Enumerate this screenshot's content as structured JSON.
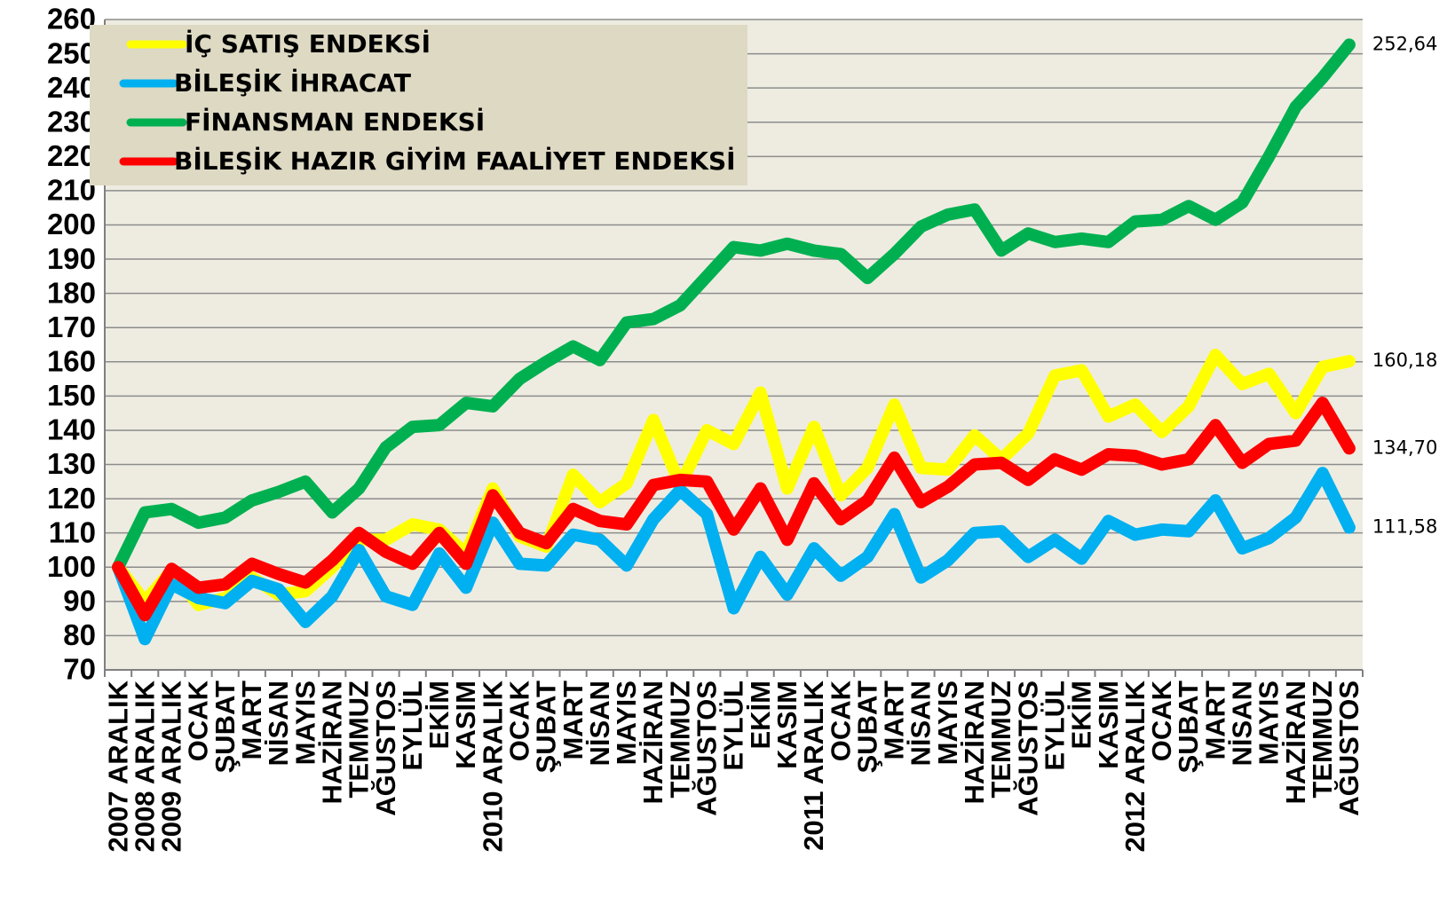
{
  "chart_data": {
    "type": "line",
    "categories": [
      "2007 ARALIK",
      "2008 ARALIK",
      "2009 ARALIK",
      "OCAK",
      "ŞUBAT",
      "MART",
      "NİSAN",
      "MAYIS",
      "HAZİRAN",
      "TEMMUZ",
      "AĞUSTOS",
      "EYLÜL",
      "EKİM",
      "KASIM",
      "2010 ARALIK",
      "OCAK",
      "ŞUBAT",
      "MART",
      "NİSAN",
      "MAYIS",
      "HAZİRAN",
      "TEMMUZ",
      "AĞUSTOS",
      "EYLÜL",
      "EKİM",
      "KASIM",
      "2011 ARALIK",
      "OCAK",
      "ŞUBAT",
      "MART",
      "NİSAN",
      "MAYIS",
      "HAZİRAN",
      "TEMMUZ",
      "AĞUSTOS",
      "EYLÜL",
      "EKİM",
      "KASIM",
      "2012 ARALIK",
      "OCAK",
      "ŞUBAT",
      "MART",
      "NİSAN",
      "MAYIS",
      "HAZİRAN",
      "TEMMUZ",
      "AĞUSTOS"
    ],
    "series": [
      {
        "name": "İÇ SATIŞ ENDEKSİ",
        "color": "#ffff00",
        "values": [
          100,
          90,
          99,
          89,
          91,
          97,
          92,
          93,
          100,
          108,
          108,
          112.5,
          111,
          104,
          123,
          109,
          106,
          127,
          119,
          124.5,
          143,
          124,
          140,
          136,
          151,
          123,
          141,
          121,
          129,
          147.5,
          129,
          128.5,
          138.5,
          131.5,
          139,
          156,
          157.5,
          144,
          147.5,
          139.5,
          147,
          162,
          153.5,
          156.5,
          145,
          158.5,
          160.18
        ],
        "value_labels": [
          null,
          null,
          null,
          null,
          null,
          null,
          null,
          null,
          null,
          null,
          null,
          null,
          null,
          null,
          null,
          null,
          null,
          null,
          null,
          null,
          null,
          null,
          null,
          null,
          null,
          null,
          null,
          null,
          null,
          null,
          null,
          null,
          null,
          null,
          null,
          null,
          null,
          null,
          null,
          null,
          null,
          null,
          null,
          null,
          null,
          null,
          "160,18"
        ]
      },
      {
        "name": "BİLEŞİK İHRACAT",
        "color": "#00b0f0",
        "values": [
          100,
          79,
          95,
          91,
          89.5,
          96,
          93.5,
          84,
          91.5,
          105,
          91.5,
          89,
          104,
          94,
          113,
          101,
          100.5,
          109.5,
          108,
          100.5,
          114,
          122.5,
          115.5,
          88,
          103,
          92,
          105.5,
          97.5,
          103,
          115.5,
          97,
          102,
          110,
          110.5,
          103,
          108,
          102.5,
          113.5,
          109.5,
          111,
          110.5,
          119.5,
          105.5,
          108.5,
          114.5,
          127.5,
          111.58
        ],
        "value_labels": [
          null,
          null,
          null,
          null,
          null,
          null,
          null,
          null,
          null,
          null,
          null,
          null,
          null,
          null,
          null,
          null,
          null,
          null,
          null,
          null,
          null,
          null,
          null,
          null,
          null,
          null,
          null,
          null,
          null,
          null,
          null,
          null,
          null,
          null,
          null,
          null,
          null,
          null,
          null,
          null,
          null,
          null,
          null,
          null,
          null,
          null,
          "111,58"
        ]
      },
      {
        "name": "FİNANSMAN ENDEKSİ",
        "color": "#00b050",
        "values": [
          100,
          116,
          117,
          113,
          114.5,
          119.5,
          122,
          125,
          116,
          123,
          135,
          141,
          141.5,
          148,
          147,
          155,
          160,
          164.5,
          160.5,
          171.5,
          172.5,
          176.5,
          185,
          193.5,
          192.5,
          194.5,
          192.5,
          191.5,
          184.5,
          191.5,
          199.5,
          203,
          204.5,
          192.5,
          197.5,
          195,
          196,
          195,
          201,
          201.5,
          205.5,
          201.5,
          206.5,
          220,
          234.5,
          243,
          252.64
        ],
        "value_labels": [
          null,
          null,
          null,
          null,
          null,
          null,
          null,
          null,
          null,
          null,
          null,
          null,
          null,
          null,
          null,
          null,
          null,
          null,
          null,
          null,
          null,
          null,
          null,
          null,
          null,
          null,
          null,
          null,
          null,
          null,
          null,
          null,
          null,
          null,
          null,
          null,
          null,
          null,
          null,
          null,
          null,
          null,
          null,
          null,
          null,
          null,
          "252,64"
        ]
      },
      {
        "name": "BİLEŞİK HAZIR GİYİM FAALİYET ENDEKSİ",
        "color": "#ff0000",
        "values": [
          100,
          86,
          99.5,
          94,
          95,
          101,
          98,
          95.5,
          102,
          110,
          104.5,
          101,
          110,
          101,
          121,
          110,
          107,
          117,
          113.5,
          112.5,
          124,
          125.5,
          125,
          111,
          123,
          108,
          124.5,
          114,
          119.5,
          132,
          119,
          123.5,
          130,
          130.5,
          125.5,
          131.5,
          128.5,
          133,
          132.5,
          130,
          131.5,
          141.5,
          130.5,
          136,
          137,
          148,
          134.7
        ],
        "value_labels": [
          null,
          null,
          null,
          null,
          null,
          null,
          null,
          null,
          null,
          null,
          null,
          null,
          null,
          null,
          null,
          null,
          null,
          null,
          null,
          null,
          null,
          null,
          null,
          null,
          null,
          null,
          null,
          null,
          null,
          null,
          null,
          null,
          null,
          null,
          null,
          null,
          null,
          null,
          null,
          null,
          null,
          null,
          null,
          null,
          null,
          null,
          "134,70"
        ]
      }
    ],
    "ylim": [
      70,
      260
    ],
    "yticks": [
      70,
      80,
      90,
      100,
      110,
      120,
      130,
      140,
      150,
      160,
      170,
      180,
      190,
      200,
      210,
      220,
      230,
      240,
      250,
      260
    ],
    "grid": true,
    "legend": "upper left"
  }
}
